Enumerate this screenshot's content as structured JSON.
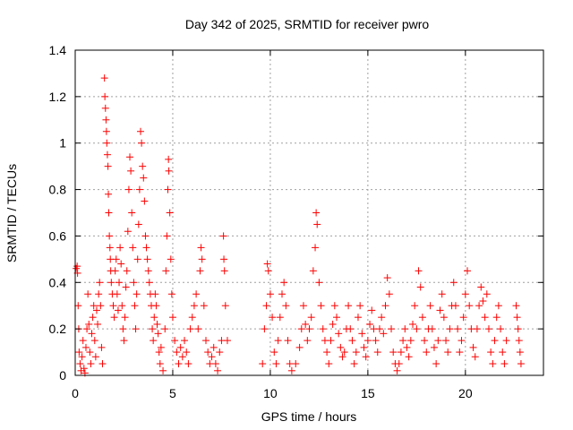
{
  "chart_data": {
    "type": "scatter",
    "title": "Day 342 of 2025, SRMTID for receiver pwro",
    "xlabel": "GPS time / hours",
    "ylabel": "SRMTID / TECUs",
    "xlim": [
      0,
      24
    ],
    "ylim": [
      0,
      1.4
    ],
    "xticks": [
      "0",
      "5",
      "10",
      "15",
      "20"
    ],
    "yticks": [
      "0",
      "0.2",
      "0.4",
      "0.6",
      "0.8",
      "1",
      "1.2",
      "1.4"
    ],
    "grid": true,
    "marker": "plus",
    "color": "#ff0000",
    "gaps_hours": [
      [
        7.9,
        9.5
      ],
      [
        22.2,
        22.5
      ]
    ],
    "series": [
      {
        "name": "pwro",
        "points": [
          [
            0.05,
            0.46
          ],
          [
            0.1,
            0.47
          ],
          [
            0.12,
            0.44
          ],
          [
            0.15,
            0.3
          ],
          [
            0.18,
            0.2
          ],
          [
            0.2,
            0.1
          ],
          [
            0.25,
            0.05
          ],
          [
            0.3,
            0.02
          ],
          [
            0.35,
            0.08
          ],
          [
            0.4,
            0.15
          ],
          [
            0.45,
            0.03
          ],
          [
            0.5,
            0.01
          ],
          [
            0.55,
            0.12
          ],
          [
            0.6,
            0.2
          ],
          [
            0.65,
            0.35
          ],
          [
            0.7,
            0.22
          ],
          [
            0.75,
            0.1
          ],
          [
            0.8,
            0.05
          ],
          [
            0.85,
            0.18
          ],
          [
            0.9,
            0.25
          ],
          [
            0.95,
            0.3
          ],
          [
            1.0,
            0.15
          ],
          [
            1.05,
            0.08
          ],
          [
            1.1,
            0.28
          ],
          [
            1.15,
            0.22
          ],
          [
            1.2,
            0.35
          ],
          [
            1.25,
            0.4
          ],
          [
            1.3,
            0.3
          ],
          [
            1.35,
            0.12
          ],
          [
            1.4,
            0.05
          ],
          [
            1.5,
            1.28
          ],
          [
            1.52,
            1.2
          ],
          [
            1.55,
            1.15
          ],
          [
            1.58,
            1.1
          ],
          [
            1.6,
            1.05
          ],
          [
            1.62,
            1.0
          ],
          [
            1.65,
            0.95
          ],
          [
            1.68,
            0.9
          ],
          [
            1.7,
            0.78
          ],
          [
            1.72,
            0.7
          ],
          [
            1.75,
            0.6
          ],
          [
            1.78,
            0.55
          ],
          [
            1.8,
            0.5
          ],
          [
            1.82,
            0.45
          ],
          [
            1.85,
            0.4
          ],
          [
            1.9,
            0.35
          ],
          [
            1.95,
            0.3
          ],
          [
            2.0,
            0.25
          ],
          [
            2.05,
            0.45
          ],
          [
            2.1,
            0.5
          ],
          [
            2.15,
            0.35
          ],
          [
            2.2,
            0.28
          ],
          [
            2.25,
            0.4
          ],
          [
            2.3,
            0.55
          ],
          [
            2.35,
            0.48
          ],
          [
            2.4,
            0.3
          ],
          [
            2.45,
            0.2
          ],
          [
            2.5,
            0.15
          ],
          [
            2.55,
            0.25
          ],
          [
            2.6,
            0.38
          ],
          [
            2.65,
            0.45
          ],
          [
            2.7,
            0.62
          ],
          [
            2.75,
            0.8
          ],
          [
            2.8,
            0.94
          ],
          [
            2.85,
            0.88
          ],
          [
            2.9,
            0.7
          ],
          [
            2.95,
            0.55
          ],
          [
            3.0,
            0.4
          ],
          [
            3.05,
            0.3
          ],
          [
            3.1,
            0.2
          ],
          [
            3.15,
            0.35
          ],
          [
            3.2,
            0.5
          ],
          [
            3.25,
            0.65
          ],
          [
            3.3,
            0.8
          ],
          [
            3.35,
            1.05
          ],
          [
            3.4,
            1.0
          ],
          [
            3.45,
            0.9
          ],
          [
            3.5,
            0.85
          ],
          [
            3.55,
            0.75
          ],
          [
            3.6,
            0.6
          ],
          [
            3.65,
            0.55
          ],
          [
            3.7,
            0.5
          ],
          [
            3.75,
            0.45
          ],
          [
            3.8,
            0.4
          ],
          [
            3.85,
            0.35
          ],
          [
            3.9,
            0.3
          ],
          [
            3.95,
            0.2
          ],
          [
            4.0,
            0.15
          ],
          [
            4.05,
            0.25
          ],
          [
            4.1,
            0.35
          ],
          [
            4.15,
            0.3
          ],
          [
            4.2,
            0.22
          ],
          [
            4.25,
            0.18
          ],
          [
            4.3,
            0.1
          ],
          [
            4.35,
            0.05
          ],
          [
            4.4,
            0.12
          ],
          [
            4.5,
            0.02
          ],
          [
            4.6,
            0.2
          ],
          [
            4.65,
            0.45
          ],
          [
            4.7,
            0.6
          ],
          [
            4.75,
            0.8
          ],
          [
            4.78,
            0.93
          ],
          [
            4.8,
            0.88
          ],
          [
            4.85,
            0.7
          ],
          [
            4.9,
            0.5
          ],
          [
            4.95,
            0.35
          ],
          [
            5.0,
            0.25
          ],
          [
            5.1,
            0.15
          ],
          [
            5.2,
            0.1
          ],
          [
            5.3,
            0.05
          ],
          [
            5.4,
            0.12
          ],
          [
            5.5,
            0.08
          ],
          [
            5.6,
            0.15
          ],
          [
            5.7,
            0.1
          ],
          [
            5.8,
            0.05
          ],
          [
            5.9,
            0.2
          ],
          [
            6.0,
            0.25
          ],
          [
            6.1,
            0.3
          ],
          [
            6.2,
            0.35
          ],
          [
            6.3,
            0.2
          ],
          [
            6.4,
            0.45
          ],
          [
            6.45,
            0.55
          ],
          [
            6.5,
            0.5
          ],
          [
            6.6,
            0.3
          ],
          [
            6.7,
            0.15
          ],
          [
            6.8,
            0.1
          ],
          [
            6.9,
            0.05
          ],
          [
            7.0,
            0.08
          ],
          [
            7.1,
            0.12
          ],
          [
            7.2,
            0.05
          ],
          [
            7.3,
            0.02
          ],
          [
            7.4,
            0.1
          ],
          [
            7.5,
            0.15
          ],
          [
            7.6,
            0.6
          ],
          [
            7.62,
            0.5
          ],
          [
            7.65,
            0.45
          ],
          [
            7.7,
            0.3
          ],
          [
            7.8,
            0.15
          ],
          [
            9.6,
            0.05
          ],
          [
            9.7,
            0.2
          ],
          [
            9.8,
            0.3
          ],
          [
            9.85,
            0.48
          ],
          [
            9.9,
            0.45
          ],
          [
            10.0,
            0.35
          ],
          [
            10.1,
            0.25
          ],
          [
            10.2,
            0.1
          ],
          [
            10.3,
            0.05
          ],
          [
            10.4,
            0.15
          ],
          [
            10.5,
            0.25
          ],
          [
            10.6,
            0.35
          ],
          [
            10.7,
            0.4
          ],
          [
            10.8,
            0.3
          ],
          [
            10.9,
            0.15
          ],
          [
            11.0,
            0.05
          ],
          [
            11.1,
            0.02
          ],
          [
            11.3,
            0.05
          ],
          [
            11.5,
            0.12
          ],
          [
            11.6,
            0.2
          ],
          [
            11.7,
            0.3
          ],
          [
            11.8,
            0.22
          ],
          [
            11.9,
            0.15
          ],
          [
            12.0,
            0.2
          ],
          [
            12.1,
            0.25
          ],
          [
            12.2,
            0.45
          ],
          [
            12.3,
            0.55
          ],
          [
            12.35,
            0.7
          ],
          [
            12.4,
            0.65
          ],
          [
            12.5,
            0.4
          ],
          [
            12.6,
            0.3
          ],
          [
            12.7,
            0.2
          ],
          [
            12.8,
            0.15
          ],
          [
            12.9,
            0.1
          ],
          [
            13.0,
            0.05
          ],
          [
            13.1,
            0.15
          ],
          [
            13.2,
            0.22
          ],
          [
            13.3,
            0.3
          ],
          [
            13.4,
            0.25
          ],
          [
            13.5,
            0.18
          ],
          [
            13.6,
            0.12
          ],
          [
            13.7,
            0.08
          ],
          [
            13.8,
            0.1
          ],
          [
            13.9,
            0.2
          ],
          [
            14.0,
            0.3
          ],
          [
            14.1,
            0.2
          ],
          [
            14.2,
            0.15
          ],
          [
            14.3,
            0.05
          ],
          [
            14.4,
            0.1
          ],
          [
            14.5,
            0.25
          ],
          [
            14.6,
            0.3
          ],
          [
            14.7,
            0.18
          ],
          [
            14.8,
            0.12
          ],
          [
            14.9,
            0.08
          ],
          [
            15.0,
            0.15
          ],
          [
            15.1,
            0.22
          ],
          [
            15.2,
            0.28
          ],
          [
            15.3,
            0.2
          ],
          [
            15.4,
            0.15
          ],
          [
            15.5,
            0.1
          ],
          [
            15.6,
            0.2
          ],
          [
            15.7,
            0.25
          ],
          [
            15.8,
            0.18
          ],
          [
            15.9,
            0.3
          ],
          [
            16.0,
            0.42
          ],
          [
            16.1,
            0.35
          ],
          [
            16.2,
            0.2
          ],
          [
            16.3,
            0.1
          ],
          [
            16.4,
            0.05
          ],
          [
            16.5,
            0.02
          ],
          [
            16.6,
            0.05
          ],
          [
            16.7,
            0.1
          ],
          [
            16.8,
            0.15
          ],
          [
            16.9,
            0.2
          ],
          [
            17.0,
            0.12
          ],
          [
            17.1,
            0.08
          ],
          [
            17.2,
            0.15
          ],
          [
            17.3,
            0.22
          ],
          [
            17.4,
            0.3
          ],
          [
            17.5,
            0.2
          ],
          [
            17.6,
            0.45
          ],
          [
            17.7,
            0.38
          ],
          [
            17.8,
            0.25
          ],
          [
            17.9,
            0.15
          ],
          [
            18.0,
            0.1
          ],
          [
            18.1,
            0.2
          ],
          [
            18.2,
            0.3
          ],
          [
            18.3,
            0.2
          ],
          [
            18.4,
            0.12
          ],
          [
            18.5,
            0.05
          ],
          [
            18.6,
            0.15
          ],
          [
            18.7,
            0.28
          ],
          [
            18.8,
            0.35
          ],
          [
            18.9,
            0.25
          ],
          [
            19.0,
            0.15
          ],
          [
            19.1,
            0.1
          ],
          [
            19.2,
            0.2
          ],
          [
            19.3,
            0.3
          ],
          [
            19.4,
            0.4
          ],
          [
            19.5,
            0.3
          ],
          [
            19.6,
            0.2
          ],
          [
            19.7,
            0.1
          ],
          [
            19.8,
            0.15
          ],
          [
            19.9,
            0.25
          ],
          [
            20.0,
            0.35
          ],
          [
            20.1,
            0.45
          ],
          [
            20.2,
            0.3
          ],
          [
            20.3,
            0.2
          ],
          [
            20.4,
            0.12
          ],
          [
            20.5,
            0.08
          ],
          [
            20.6,
            0.2
          ],
          [
            20.7,
            0.3
          ],
          [
            20.8,
            0.38
          ],
          [
            20.9,
            0.32
          ],
          [
            21.0,
            0.25
          ],
          [
            21.1,
            0.35
          ],
          [
            21.2,
            0.2
          ],
          [
            21.3,
            0.1
          ],
          [
            21.4,
            0.05
          ],
          [
            21.5,
            0.15
          ],
          [
            21.6,
            0.25
          ],
          [
            21.7,
            0.3
          ],
          [
            21.8,
            0.2
          ],
          [
            21.9,
            0.1
          ],
          [
            22.0,
            0.05
          ],
          [
            22.1,
            0.15
          ],
          [
            22.6,
            0.3
          ],
          [
            22.65,
            0.25
          ],
          [
            22.7,
            0.2
          ],
          [
            22.75,
            0.15
          ],
          [
            22.8,
            0.1
          ],
          [
            22.85,
            0.05
          ]
        ]
      }
    ]
  }
}
